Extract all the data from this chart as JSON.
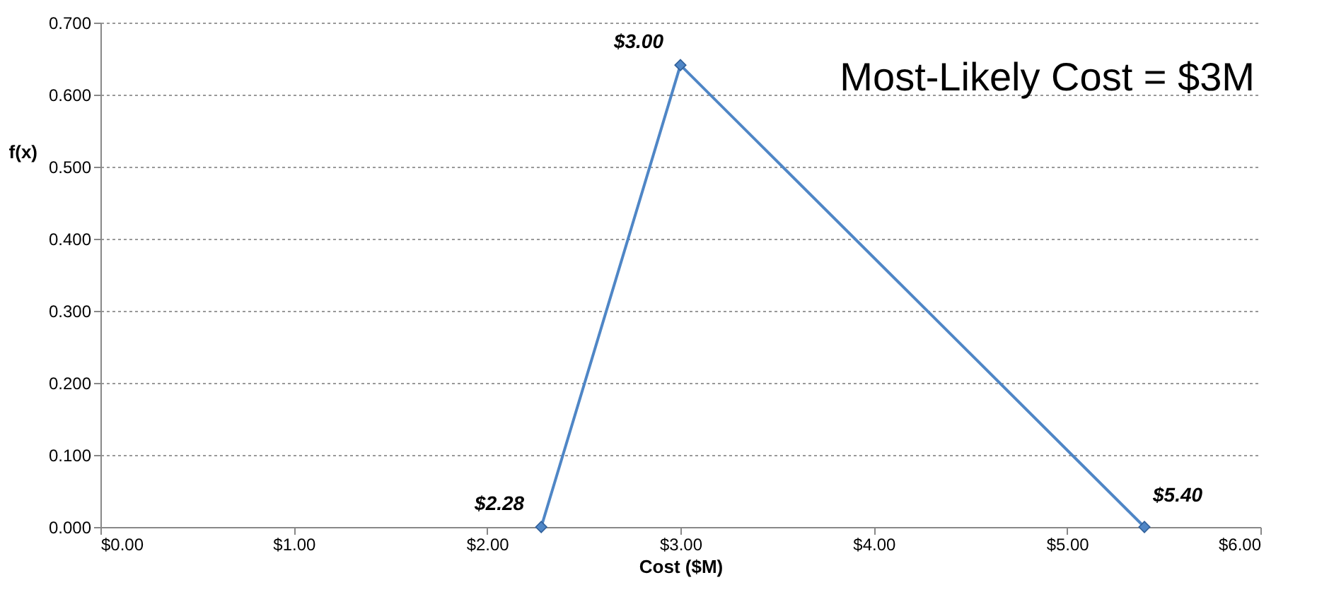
{
  "chart_data": {
    "type": "line",
    "xlabel": "Cost ($M)",
    "ylabel": "f(x)",
    "x": [
      2.28,
      3.0,
      5.4
    ],
    "series": [
      {
        "color": "#4f86c6",
        "values": [
          0,
          0.641,
          0
        ]
      }
    ],
    "marker": "diamond",
    "line_style": "solid",
    "grid": "y",
    "xlim": [
      0,
      6
    ],
    "ylim": [
      0,
      0.7
    ],
    "xticks": [
      {
        "value": 0,
        "label": "$0.00"
      },
      {
        "value": 1,
        "label": "$1.00"
      },
      {
        "value": 2,
        "label": "$2.00"
      },
      {
        "value": 3,
        "label": "$3.00"
      },
      {
        "value": 4,
        "label": "$4.00"
      },
      {
        "value": 5,
        "label": "$5.00"
      },
      {
        "value": 6,
        "label": "$6.00"
      }
    ],
    "yticks": [
      {
        "value": 0,
        "label": "0.000"
      },
      {
        "value": 0.1,
        "label": "0.100"
      },
      {
        "value": 0.2,
        "label": "0.200"
      },
      {
        "value": 0.3,
        "label": "0.300"
      },
      {
        "value": 0.4,
        "label": "0.400"
      },
      {
        "value": 0.5,
        "label": "0.500"
      },
      {
        "value": 0.6,
        "label": "0.600"
      },
      {
        "value": 0.7,
        "label": "0.700"
      }
    ],
    "annotations": [
      {
        "text": "$2.28",
        "x": 2.28,
        "y": 0
      },
      {
        "text": "$3.00",
        "x": 3.0,
        "y": 0.641
      },
      {
        "text": "$5.40",
        "x": 5.4,
        "y": 0
      },
      "Most-Likely Cost = $3M"
    ]
  }
}
